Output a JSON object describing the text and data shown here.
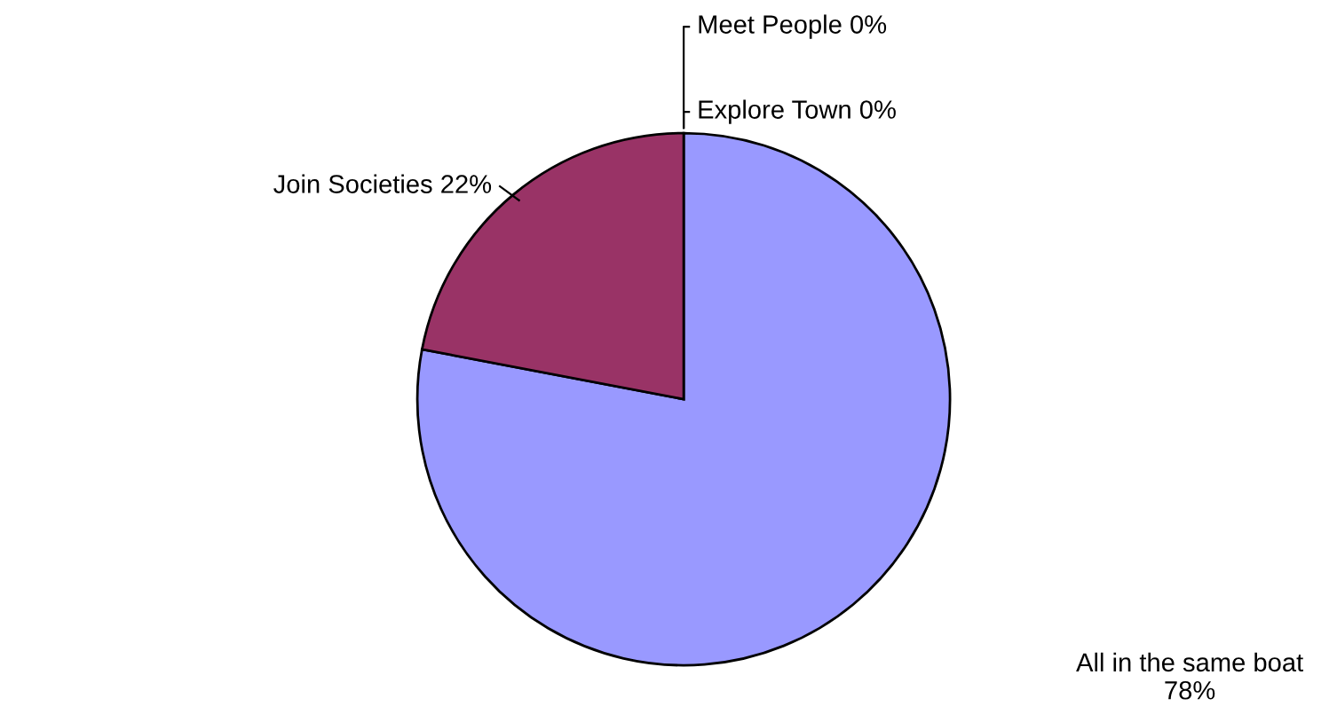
{
  "chart_data": {
    "type": "pie",
    "categories": [
      "All in the same boat",
      "Join Societies",
      "Explore Town",
      "Meet People"
    ],
    "values": [
      78,
      22,
      0,
      0
    ],
    "value_labels": [
      "78%",
      "22%",
      "0%",
      "0%"
    ],
    "colors": [
      "#9999ff",
      "#993366",
      "#ffffcc",
      "#ccffff"
    ]
  }
}
